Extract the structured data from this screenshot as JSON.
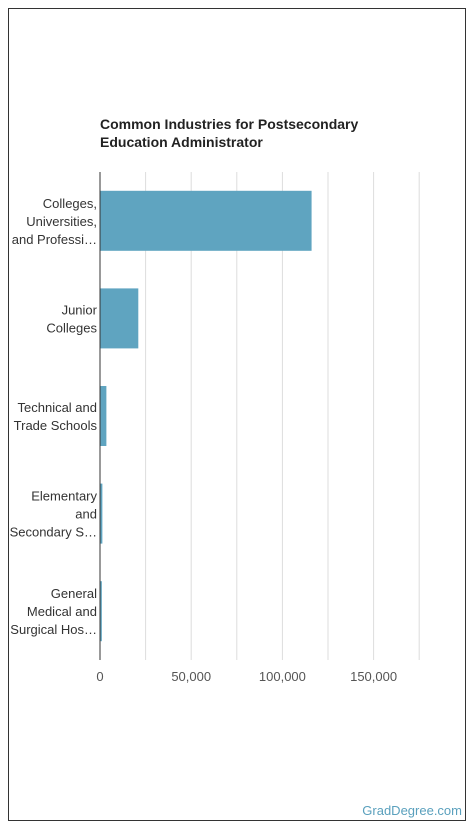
{
  "chart_data": {
    "type": "bar",
    "orientation": "horizontal",
    "title": [
      "Common Industries for Postsecondary",
      "Education Administrator"
    ],
    "categories": [
      [
        "Colleges,",
        "Universities,",
        "and Professi…"
      ],
      [
        "Junior",
        "Colleges"
      ],
      [
        "Technical and",
        "Trade Schools"
      ],
      [
        "Elementary",
        "and",
        "Secondary S…"
      ],
      [
        "General",
        "Medical and",
        "Surgical Hos…"
      ]
    ],
    "values": [
      116000,
      21000,
      3500,
      1300,
      1000
    ],
    "xlim": [
      0,
      150000
    ],
    "xticks": [
      0,
      50000,
      100000,
      150000
    ],
    "xtick_labels": [
      "0",
      "50,000",
      "100,000",
      "150,000"
    ],
    "grid": true,
    "bar_color": "#5fa4c0"
  },
  "credit": "GradDegree.com"
}
